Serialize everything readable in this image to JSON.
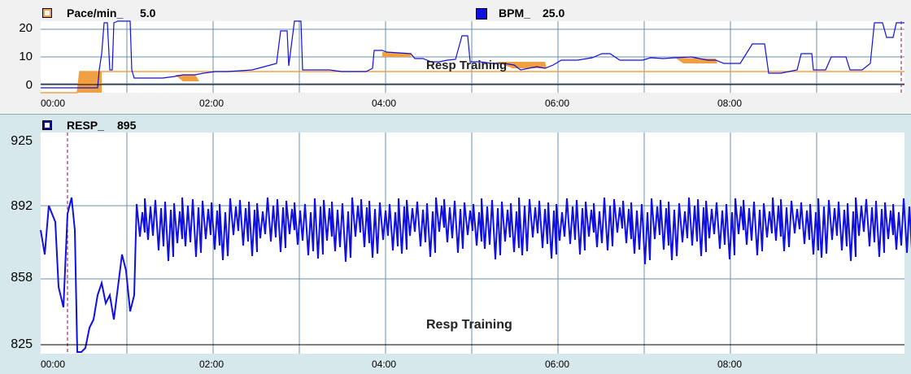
{
  "top_panel": {
    "legend": {
      "pace_label": "Pace/min_",
      "pace_value": "5.0",
      "bpm_label": "BPM_",
      "bpm_value": "25.0"
    },
    "y_ticks": [
      "20",
      "10",
      "0"
    ],
    "x_ticks": [
      "00:00",
      "02:00",
      "04:00",
      "06:00",
      "08:00"
    ],
    "annotation": "Resp Training",
    "colors": {
      "pace": "#f0a040",
      "bpm": "#1010e0"
    }
  },
  "bottom_panel": {
    "legend": {
      "resp_label": "RESP_",
      "resp_value": "895"
    },
    "y_ticks": [
      "925",
      "892",
      "858",
      "825"
    ],
    "x_ticks": [
      "00:00",
      "02:00",
      "04:00",
      "06:00",
      "08:00"
    ],
    "annotation": "Resp Training",
    "colors": {
      "resp": "#1010e0",
      "marker": "#a03070"
    }
  }
}
